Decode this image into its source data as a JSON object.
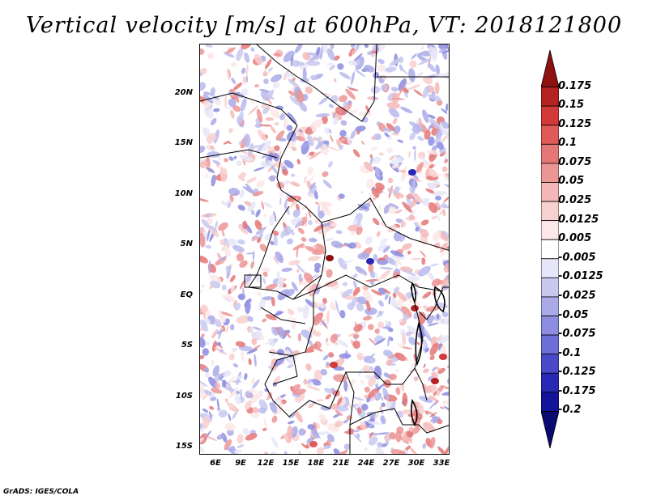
{
  "title": "Vertical velocity [m/s] at 600hPa, VT: 2018121800",
  "footer": "GrADS: IGES/COLA",
  "map": {
    "lat_labels": [
      "20N",
      "15N",
      "10N",
      "5N",
      "EQ",
      "5S",
      "10S",
      "15S"
    ],
    "lon_labels": [
      "6E",
      "9E",
      "12E",
      "15E",
      "18E",
      "21E",
      "24E",
      "27E",
      "30E",
      "33E"
    ]
  },
  "colorbar": {
    "levels": [
      "0.175",
      "0.15",
      "0.125",
      "0.1",
      "0.075",
      "0.05",
      "0.025",
      "0.0125",
      "0.005",
      "-0.005",
      "-0.0125",
      "-0.025",
      "-0.05",
      "-0.075",
      "-0.1",
      "-0.125",
      "-0.175",
      "-0.2"
    ],
    "colors": [
      "#8e1010",
      "#b52222",
      "#d23a3a",
      "#e05a5a",
      "#e57777",
      "#ec9595",
      "#f4b7b7",
      "#f8d0d0",
      "#fce8e8",
      "#ffffff",
      "#e6e6f8",
      "#c8c8f0",
      "#aaaae8",
      "#8c8ce0",
      "#6e6ed8",
      "#4a4ac8",
      "#2828b4",
      "#14149a",
      "#0a0a70"
    ]
  }
}
